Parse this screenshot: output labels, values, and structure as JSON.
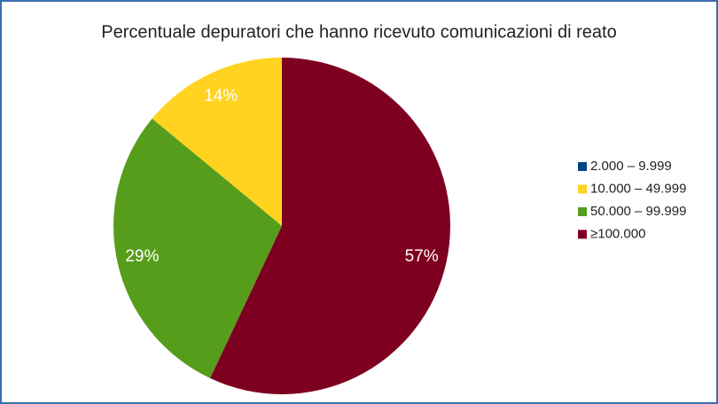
{
  "chart_data": {
    "type": "pie",
    "title": "Percentuale depuratori che hanno ricevuto comunicazioni di reato",
    "categories": [
      "2.000 – 9.999",
      "10.000 – 49.999",
      "50.000 – 99.999",
      "≥100.000"
    ],
    "values": [
      0,
      14,
      29,
      57
    ],
    "value_labels": [
      null,
      "14%",
      "29%",
      "57%"
    ],
    "colors": [
      "#004586",
      "#ffd320",
      "#579d1c",
      "#7e0021"
    ],
    "legend": "right"
  }
}
